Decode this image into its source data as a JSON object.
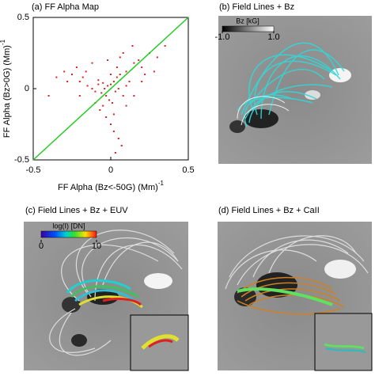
{
  "chart_data": {
    "type": "scatter",
    "title": "(a) FF Alpha Map",
    "xlabel": "FF Alpha (Bz<-50G) (Mm)",
    "xlabel_sup": "-1",
    "ylabel": "FF Alpha (Bz>0G) (Mm)",
    "ylabel_sup": "-1",
    "xlim": [
      -0.5,
      0.5
    ],
    "ylim": [
      -0.5,
      0.5
    ],
    "xticks": [
      -0.5,
      0,
      0.5
    ],
    "yticks": [
      -0.5,
      0,
      0.5
    ],
    "series": [
      {
        "color": "#e02020",
        "x": [
          -0.3,
          -0.25,
          -0.22,
          -0.2,
          -0.18,
          -0.15,
          -0.12,
          -0.1,
          -0.08,
          -0.06,
          -0.05,
          -0.04,
          -0.03,
          -0.02,
          -0.01,
          0,
          0.01,
          0.02,
          0.03,
          0.04,
          0.05,
          0.06,
          0.08,
          0.1,
          0.12,
          0.15,
          0.18,
          0.2,
          0.25,
          0.3,
          -0.28,
          -0.2,
          -0.16,
          -0.1,
          -0.07,
          -0.03,
          0,
          0.02,
          0.05,
          0.07,
          0.1,
          0.14,
          0.2,
          0.35,
          -0.35,
          -0.12,
          0.03,
          0.06,
          0.0,
          -0.05,
          0.1,
          0.15,
          0.22,
          0.04,
          -0.02,
          0.08,
          -0.4,
          0.28,
          0.02,
          -0.08
        ],
        "values": [
          0.12,
          0.1,
          0.15,
          0.05,
          0.08,
          0.02,
          0.0,
          -0.02,
          0.06,
          -0.03,
          0.04,
          0.0,
          -0.05,
          0.02,
          -0.08,
          0.03,
          -0.1,
          0.05,
          -0.02,
          0.08,
          0.0,
          0.1,
          -0.05,
          0.12,
          0.05,
          0.18,
          0.2,
          0.15,
          0.25,
          0.22,
          0.05,
          -0.05,
          0.12,
          -0.1,
          -0.15,
          -0.2,
          -0.25,
          -0.3,
          -0.35,
          -0.4,
          -0.12,
          0.3,
          0.05,
          0.3,
          0.08,
          0.18,
          -0.45,
          0.22,
          0.1,
          -0.12,
          0.02,
          -0.05,
          0.1,
          0.15,
          0.2,
          0.25,
          -0.05,
          0.12,
          -0.18,
          0.03
        ]
      }
    ],
    "diagonal": {
      "color": "#22cc22",
      "x": [
        -0.5,
        0.5
      ],
      "values": [
        -0.5,
        0.5
      ]
    }
  },
  "panels": [
    {
      "title": "(b) Field Lines + Bz",
      "colorbar": {
        "label": "Bz [kG]",
        "ticks": [
          {
            "value": -1,
            "label": "-1.0"
          },
          {
            "value": 1,
            "label": "1.0"
          }
        ]
      }
    },
    {
      "title": "(c) Field Lines + Bz + EUV",
      "colorbar": {
        "label": "log(I) [DN]",
        "ticks": [
          0,
          10
        ]
      }
    },
    {
      "title": "(d) Field Lines + Bz + CaII"
    }
  ]
}
